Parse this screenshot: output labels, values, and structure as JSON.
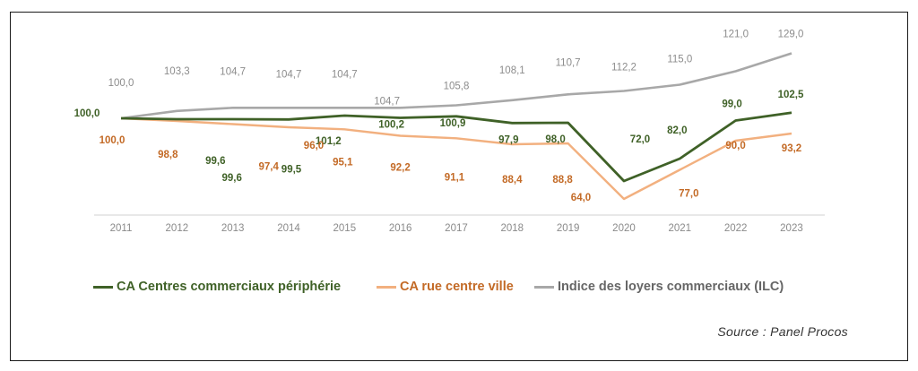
{
  "colors": {
    "green": "#3f6127",
    "orange": "#f2b07f",
    "orange_label": "#c36a26",
    "gray": "#a8a8a8",
    "gray_label": "#8c8c8c",
    "axis": "#d0d0d0",
    "tick": "#8a8a8a"
  },
  "source": "Source : Panel Procos",
  "chart_data": {
    "type": "line",
    "categories": [
      "2011",
      "2012",
      "2013",
      "2014",
      "2015",
      "2016",
      "2017",
      "2018",
      "2019",
      "2020",
      "2021",
      "2022",
      "2023"
    ],
    "series": [
      {
        "name": "CA Centres commerciaux périphérie",
        "color": "green",
        "values": [
          100.0,
          99.6,
          99.6,
          99.5,
          101.2,
          100.2,
          100.9,
          97.9,
          98.0,
          72.0,
          82.0,
          99.0,
          102.5
        ],
        "labels": [
          "100,0",
          "99,6",
          "99,6",
          "99,5",
          "101,2",
          "100,2",
          "100,9",
          "97,9",
          "98,0",
          "72,0",
          "82,0",
          "99,0",
          "102,5"
        ]
      },
      {
        "name": "CA rue centre ville",
        "color": "orange",
        "values": [
          100.0,
          98.8,
          97.4,
          96.0,
          95.1,
          92.2,
          91.1,
          88.4,
          88.8,
          64.0,
          77.0,
          90.0,
          93.2
        ],
        "labels": [
          "100,0",
          "98,8",
          "97,4",
          "96,0",
          "95,1",
          "92,2",
          "91,1",
          "88,4",
          "88,8",
          "64,0",
          "77,0",
          "90,0",
          "93,2"
        ]
      },
      {
        "name": "Indice des loyers commerciaux (ILC)",
        "color": "gray",
        "values": [
          100.0,
          103.3,
          104.7,
          104.7,
          104.7,
          104.7,
          105.8,
          108.1,
          110.7,
          112.2,
          115.0,
          121.0,
          129.0
        ],
        "labels": [
          "100,0",
          "103,3",
          "104,7",
          "104,7",
          "104,7",
          "104,7",
          "105,8",
          "108,1",
          "110,7",
          "112,2",
          "115,0",
          "121,0",
          "129,0"
        ]
      }
    ],
    "legend_position": "bottom",
    "grid": false
  }
}
